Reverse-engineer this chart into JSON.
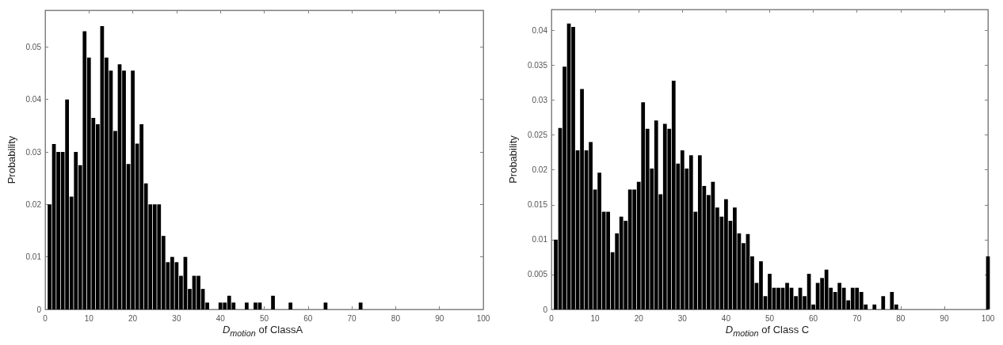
{
  "chart_data": [
    {
      "type": "bar",
      "xlabel": "D$_{motion}$ of ClassA",
      "ylabel": "Probability",
      "color": "#000000",
      "x": [
        1,
        2,
        3,
        4,
        5,
        6,
        7,
        8,
        9,
        10,
        11,
        12,
        13,
        14,
        15,
        16,
        17,
        18,
        19,
        20,
        21,
        22,
        23,
        24,
        25,
        26,
        27,
        28,
        29,
        30,
        31,
        32,
        33,
        34,
        35,
        36,
        37,
        40,
        41,
        42,
        43,
        46,
        48,
        49,
        52,
        56,
        64,
        72
      ],
      "values": [
        0.02,
        0.0315,
        0.03,
        0.03,
        0.04,
        0.0215,
        0.03,
        0.0275,
        0.053,
        0.048,
        0.0365,
        0.0353,
        0.054,
        0.048,
        0.0455,
        0.034,
        0.0467,
        0.0455,
        0.0277,
        0.0455,
        0.0316,
        0.0353,
        0.024,
        0.02,
        0.02,
        0.02,
        0.014,
        0.009,
        0.01,
        0.009,
        0.0064,
        0.01,
        0.0039,
        0.0064,
        0.0064,
        0.0039,
        0.0013,
        0.0013,
        0.0013,
        0.0026,
        0.0013,
        0.0013,
        0.0013,
        0.0013,
        0.0026,
        0.0013,
        0.0013,
        0.0013
      ],
      "xlim": [
        0,
        100
      ],
      "xticks": [
        0,
        10,
        20,
        30,
        40,
        50,
        60,
        70,
        80,
        90,
        100
      ],
      "ylim": [
        0,
        0.057
      ],
      "yticks": [
        0,
        0.01,
        0.02,
        0.03,
        0.04,
        0.05
      ]
    },
    {
      "type": "bar",
      "xlabel": "D$_{motion}$ of Class C",
      "ylabel": "Probability",
      "color": "#000000",
      "x": [
        1,
        2,
        3,
        4,
        5,
        6,
        7,
        8,
        9,
        10,
        11,
        12,
        13,
        14,
        15,
        16,
        17,
        18,
        19,
        20,
        21,
        22,
        23,
        24,
        25,
        26,
        27,
        28,
        29,
        30,
        31,
        32,
        33,
        34,
        35,
        36,
        37,
        38,
        39,
        40,
        41,
        42,
        43,
        44,
        45,
        46,
        47,
        48,
        49,
        50,
        51,
        52,
        53,
        54,
        55,
        56,
        57,
        58,
        59,
        60,
        61,
        62,
        63,
        64,
        65,
        66,
        67,
        68,
        69,
        70,
        71,
        72,
        74,
        76,
        78,
        79,
        100
      ],
      "values": [
        0.01,
        0.026,
        0.0348,
        0.041,
        0.0405,
        0.0228,
        0.0316,
        0.0228,
        0.024,
        0.0172,
        0.0196,
        0.014,
        0.014,
        0.0082,
        0.0109,
        0.0133,
        0.0127,
        0.0172,
        0.0172,
        0.0183,
        0.0297,
        0.0259,
        0.0202,
        0.0271,
        0.0165,
        0.0266,
        0.0259,
        0.0328,
        0.0209,
        0.0228,
        0.0202,
        0.0221,
        0.014,
        0.0221,
        0.0177,
        0.0164,
        0.0183,
        0.0146,
        0.0133,
        0.0158,
        0.0127,
        0.0146,
        0.0109,
        0.0095,
        0.0108,
        0.0076,
        0.0038,
        0.0069,
        0.0019,
        0.0051,
        0.0031,
        0.0031,
        0.0031,
        0.0038,
        0.0031,
        0.0019,
        0.0031,
        0.0019,
        0.0051,
        0.0007,
        0.0038,
        0.0045,
        0.0057,
        0.0031,
        0.0025,
        0.0038,
        0.0031,
        0.0013,
        0.0031,
        0.0031,
        0.0025,
        0.0007,
        0.0007,
        0.0019,
        0.0025,
        0.0007,
        0.0076
      ],
      "xlim": [
        0,
        100
      ],
      "xticks": [
        0,
        10,
        20,
        30,
        40,
        50,
        60,
        70,
        80,
        90,
        100
      ],
      "ylim": [
        0,
        0.043
      ],
      "yticks": [
        0,
        0.005,
        0.01,
        0.015,
        0.02,
        0.025,
        0.03,
        0.035,
        0.04
      ]
    }
  ]
}
